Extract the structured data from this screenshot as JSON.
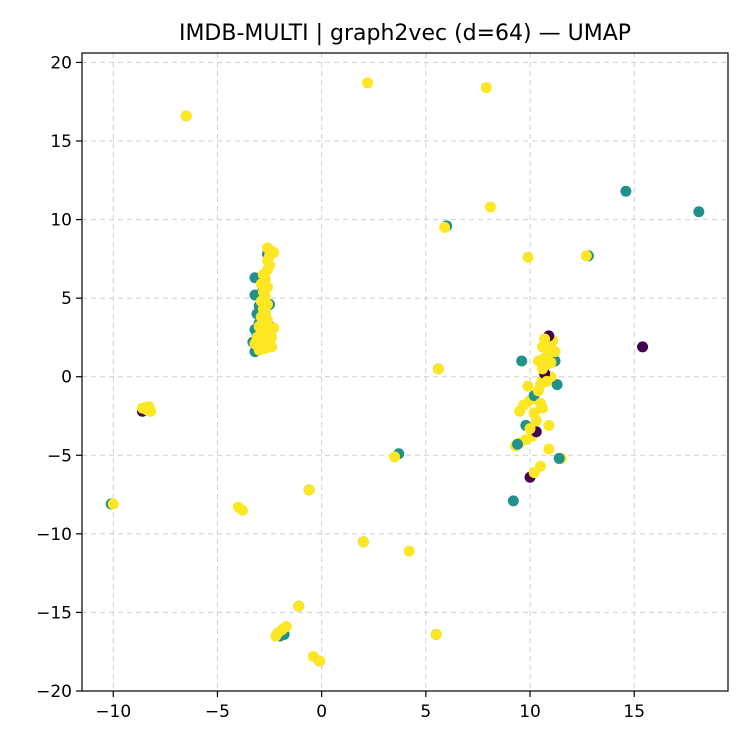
{
  "chart_data": {
    "type": "scatter",
    "title": "IMDB-MULTI | graph2vec (d=64) — UMAP",
    "xlabel": "",
    "ylabel": "",
    "xlim": [
      -11.5,
      19.5
    ],
    "ylim": [
      -20,
      20.6
    ],
    "x_ticks": [
      -10,
      -5,
      0,
      5,
      10,
      15
    ],
    "y_ticks": [
      -20,
      -15,
      -10,
      -5,
      0,
      5,
      10,
      15,
      20
    ],
    "x_tick_labels": [
      "−10",
      "−5",
      "0",
      "5",
      "10",
      "15"
    ],
    "y_tick_labels": [
      "−20",
      "−15",
      "−10",
      "−5",
      "0",
      "5",
      "10",
      "15",
      "20"
    ],
    "grid": true,
    "legend": "none",
    "class_colors": [
      "#440154",
      "#21918c",
      "#fde725"
    ],
    "points": [
      [
        -3.2,
        1.6,
        1
      ],
      [
        -3.0,
        1.9,
        1
      ],
      [
        -3.3,
        2.2,
        1
      ],
      [
        -3.1,
        2.6,
        1
      ],
      [
        -3.2,
        3.0,
        1
      ],
      [
        -3.0,
        3.4,
        1
      ],
      [
        -3.1,
        4.0,
        1
      ],
      [
        -3.0,
        4.5,
        1
      ],
      [
        -3.2,
        6.3,
        1
      ],
      [
        -2.8,
        6.0,
        1
      ],
      [
        -2.6,
        7.8,
        1
      ],
      [
        -2.5,
        4.6,
        1
      ],
      [
        -3.2,
        5.2,
        1
      ],
      [
        -2.7,
        3.8,
        1
      ],
      [
        -2.9,
        2.0,
        0
      ],
      [
        -2.6,
        2.8,
        0
      ],
      [
        -2.8,
        5.5,
        0
      ],
      [
        -2.5,
        3.2,
        0
      ],
      [
        -3.0,
        1.7,
        2
      ],
      [
        -2.9,
        2.0,
        2
      ],
      [
        -2.8,
        2.3,
        2
      ],
      [
        -3.1,
        2.5,
        2
      ],
      [
        -2.7,
        2.7,
        2
      ],
      [
        -2.9,
        2.9,
        2
      ],
      [
        -2.6,
        3.0,
        2
      ],
      [
        -3.0,
        3.2,
        2
      ],
      [
        -2.8,
        3.4,
        2
      ],
      [
        -2.6,
        3.6,
        2
      ],
      [
        -2.9,
        3.8,
        2
      ],
      [
        -2.7,
        4.1,
        2
      ],
      [
        -2.8,
        4.3,
        2
      ],
      [
        -2.6,
        4.6,
        2
      ],
      [
        -2.9,
        4.8,
        2
      ],
      [
        -2.7,
        5.1,
        2
      ],
      [
        -2.8,
        5.4,
        2
      ],
      [
        -2.6,
        5.7,
        2
      ],
      [
        -2.9,
        5.9,
        2
      ],
      [
        -2.7,
        6.2,
        2
      ],
      [
        -2.8,
        6.5,
        2
      ],
      [
        -2.6,
        6.8,
        2
      ],
      [
        -2.5,
        7.1,
        2
      ],
      [
        -2.6,
        7.4,
        2
      ],
      [
        -2.5,
        7.7,
        2
      ],
      [
        -2.4,
        8.0,
        2
      ],
      [
        -2.6,
        8.2,
        2
      ],
      [
        -2.3,
        7.9,
        2
      ],
      [
        -2.4,
        2.5,
        2
      ],
      [
        -2.3,
        3.1,
        2
      ],
      [
        -2.5,
        2.2,
        2
      ],
      [
        -3.2,
        2.1,
        2
      ],
      [
        -2.4,
        1.9,
        2
      ],
      [
        -2.7,
        1.8,
        2
      ],
      [
        -8.6,
        -2.2,
        0
      ],
      [
        -8.5,
        -2.0,
        1
      ],
      [
        -8.4,
        -2.1,
        2
      ],
      [
        -8.3,
        -1.9,
        2
      ],
      [
        -8.6,
        -2.0,
        2
      ],
      [
        -8.2,
        -2.2,
        2
      ],
      [
        -10.1,
        -8.1,
        1
      ],
      [
        -10.0,
        -8.1,
        2
      ],
      [
        -6.5,
        16.6,
        1
      ],
      [
        -6.5,
        16.6,
        2
      ],
      [
        2.2,
        18.7,
        2
      ],
      [
        7.9,
        18.4,
        2
      ],
      [
        -4.0,
        -8.3,
        2
      ],
      [
        -3.8,
        -8.5,
        2
      ],
      [
        -0.6,
        -7.2,
        1
      ],
      [
        -0.6,
        -7.2,
        2
      ],
      [
        2.0,
        -10.5,
        1
      ],
      [
        2.0,
        -10.5,
        2
      ],
      [
        4.2,
        -11.1,
        2
      ],
      [
        -1.1,
        -14.6,
        1
      ],
      [
        -1.1,
        -14.6,
        2
      ],
      [
        -2.0,
        -16.5,
        1
      ],
      [
        -1.8,
        -16.4,
        1
      ],
      [
        -2.1,
        -16.3,
        2
      ],
      [
        -1.9,
        -16.1,
        2
      ],
      [
        -1.7,
        -15.9,
        2
      ],
      [
        -2.2,
        -16.5,
        2
      ],
      [
        -0.4,
        -17.8,
        2
      ],
      [
        -0.1,
        -18.1,
        1
      ],
      [
        -0.1,
        -18.1,
        2
      ],
      [
        5.5,
        -16.4,
        1
      ],
      [
        5.5,
        -16.4,
        2
      ],
      [
        3.7,
        -4.9,
        1
      ],
      [
        3.5,
        -5.1,
        2
      ],
      [
        5.6,
        0.5,
        1
      ],
      [
        5.6,
        0.5,
        2
      ],
      [
        6.0,
        9.6,
        1
      ],
      [
        5.9,
        9.5,
        2
      ],
      [
        8.1,
        10.8,
        2
      ],
      [
        9.9,
        7.6,
        2
      ],
      [
        12.8,
        7.7,
        1
      ],
      [
        12.7,
        7.7,
        2
      ],
      [
        14.6,
        11.8,
        1
      ],
      [
        18.1,
        10.5,
        1
      ],
      [
        15.4,
        1.9,
        0
      ],
      [
        9.6,
        1.0,
        1
      ],
      [
        9.2,
        -7.9,
        1
      ],
      [
        10.0,
        -6.4,
        0
      ],
      [
        10.2,
        -6.1,
        2
      ],
      [
        10.5,
        -5.7,
        2
      ],
      [
        11.5,
        -5.2,
        2
      ],
      [
        11.4,
        -5.2,
        1
      ],
      [
        10.9,
        -4.6,
        2
      ],
      [
        9.3,
        -4.4,
        2
      ],
      [
        9.5,
        -4.2,
        2
      ],
      [
        9.8,
        -4.0,
        2
      ],
      [
        10.1,
        -3.8,
        2
      ],
      [
        10.3,
        -3.5,
        0
      ],
      [
        9.8,
        -3.1,
        1
      ],
      [
        10.9,
        -3.1,
        2
      ],
      [
        10.3,
        -2.8,
        2
      ],
      [
        9.5,
        -2.2,
        2
      ],
      [
        9.7,
        -1.8,
        2
      ],
      [
        10.0,
        -1.5,
        2
      ],
      [
        10.2,
        -1.2,
        1
      ],
      [
        10.4,
        -0.9,
        2
      ],
      [
        9.9,
        -0.6,
        2
      ],
      [
        10.5,
        -0.5,
        2
      ],
      [
        10.6,
        -0.2,
        2
      ],
      [
        11.3,
        -0.5,
        1
      ],
      [
        11.0,
        0.0,
        2
      ],
      [
        10.7,
        0.2,
        0
      ],
      [
        10.6,
        0.5,
        2
      ],
      [
        10.8,
        0.8,
        2
      ],
      [
        11.2,
        1.0,
        1
      ],
      [
        10.7,
        1.2,
        2
      ],
      [
        10.9,
        1.5,
        2
      ],
      [
        11.0,
        1.8,
        2
      ],
      [
        10.8,
        2.1,
        2
      ],
      [
        11.1,
        2.3,
        2
      ],
      [
        10.9,
        2.6,
        0
      ],
      [
        10.7,
        2.4,
        2
      ],
      [
        11.2,
        1.6,
        2
      ],
      [
        10.6,
        1.9,
        2
      ],
      [
        10.4,
        1.0,
        2
      ],
      [
        10.5,
        -1.7,
        2
      ],
      [
        10.2,
        -2.3,
        2
      ],
      [
        10.0,
        -3.3,
        2
      ],
      [
        9.4,
        -4.3,
        1
      ],
      [
        10.6,
        -2.0,
        2
      ],
      [
        11.0,
        0.9,
        2
      ],
      [
        10.8,
        -0.3,
        2
      ]
    ]
  }
}
